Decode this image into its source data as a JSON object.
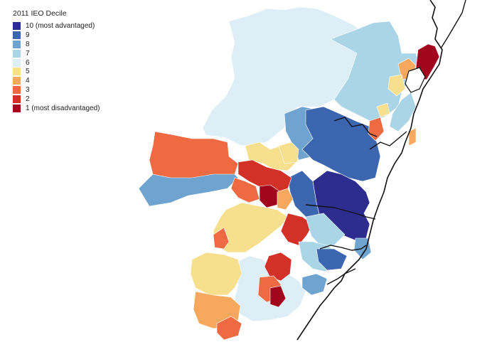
{
  "legend": {
    "title": "2011 IEO Decile",
    "items": [
      {
        "label": "10 (most advantaged)",
        "decile": 10,
        "color": "#2c2d8e"
      },
      {
        "label": "9",
        "decile": 9,
        "color": "#3d66b0"
      },
      {
        "label": "8",
        "decile": 8,
        "color": "#6fa3d0"
      },
      {
        "label": "7",
        "decile": 7,
        "color": "#a9d5e7"
      },
      {
        "label": "6",
        "decile": 6,
        "color": "#ddeef6"
      },
      {
        "label": "5",
        "decile": 5,
        "color": "#f7e08d"
      },
      {
        "label": "4",
        "decile": 4,
        "color": "#f6a95e"
      },
      {
        "label": "3",
        "decile": 3,
        "color": "#ef6a42"
      },
      {
        "label": "2",
        "decile": 2,
        "color": "#d33027"
      },
      {
        "label": "1 (most disadvantaged)",
        "decile": 1,
        "color": "#a2061f"
      }
    ]
  },
  "map": {
    "coastline_color": "#111111",
    "background_color": "#ffffff"
  }
}
